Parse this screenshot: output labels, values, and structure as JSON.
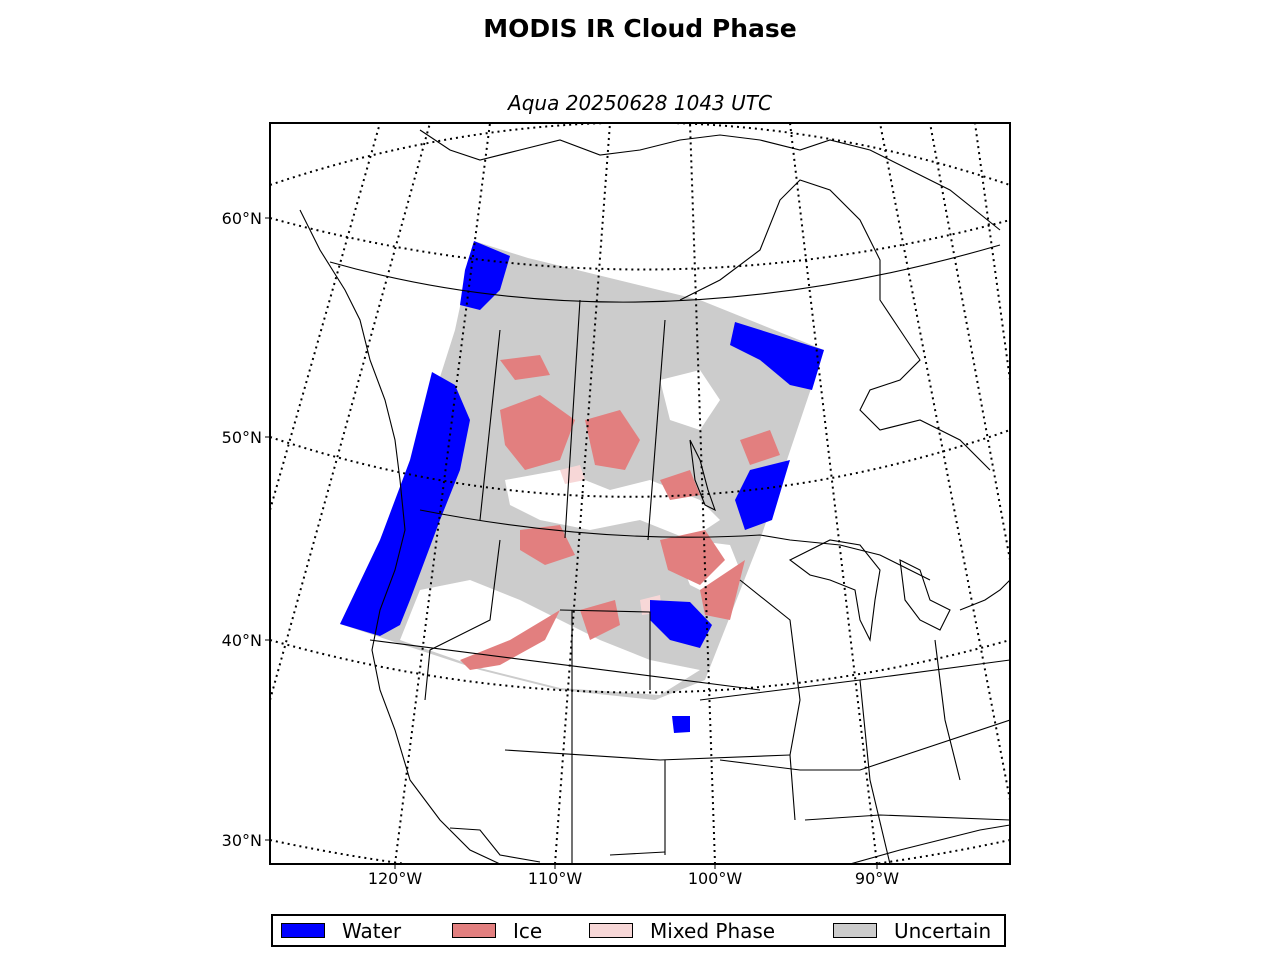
{
  "title": "MODIS IR Cloud Phase",
  "subtitle": "Aqua 20250628 1043 UTC",
  "latitude_labels": [
    "60°N",
    "50°N",
    "40°N",
    "30°N"
  ],
  "longitude_labels": [
    "120°W",
    "110°W",
    "100°W",
    "90°W"
  ],
  "legend": [
    {
      "label": "Water",
      "color": "#0000ff"
    },
    {
      "label": "Ice",
      "color": "#e27f7f"
    },
    {
      "label": "Mixed Phase",
      "color": "#f7d7d7"
    },
    {
      "label": "Uncertain",
      "color": "#cccccc"
    }
  ],
  "colors": {
    "water": "#0000ff",
    "ice": "#e27f7f",
    "mixed_phase": "#f7d7d7",
    "uncertain": "#cccccc",
    "clear": "#ffffff",
    "coastline": "#000000",
    "graticule": "#000000"
  }
}
